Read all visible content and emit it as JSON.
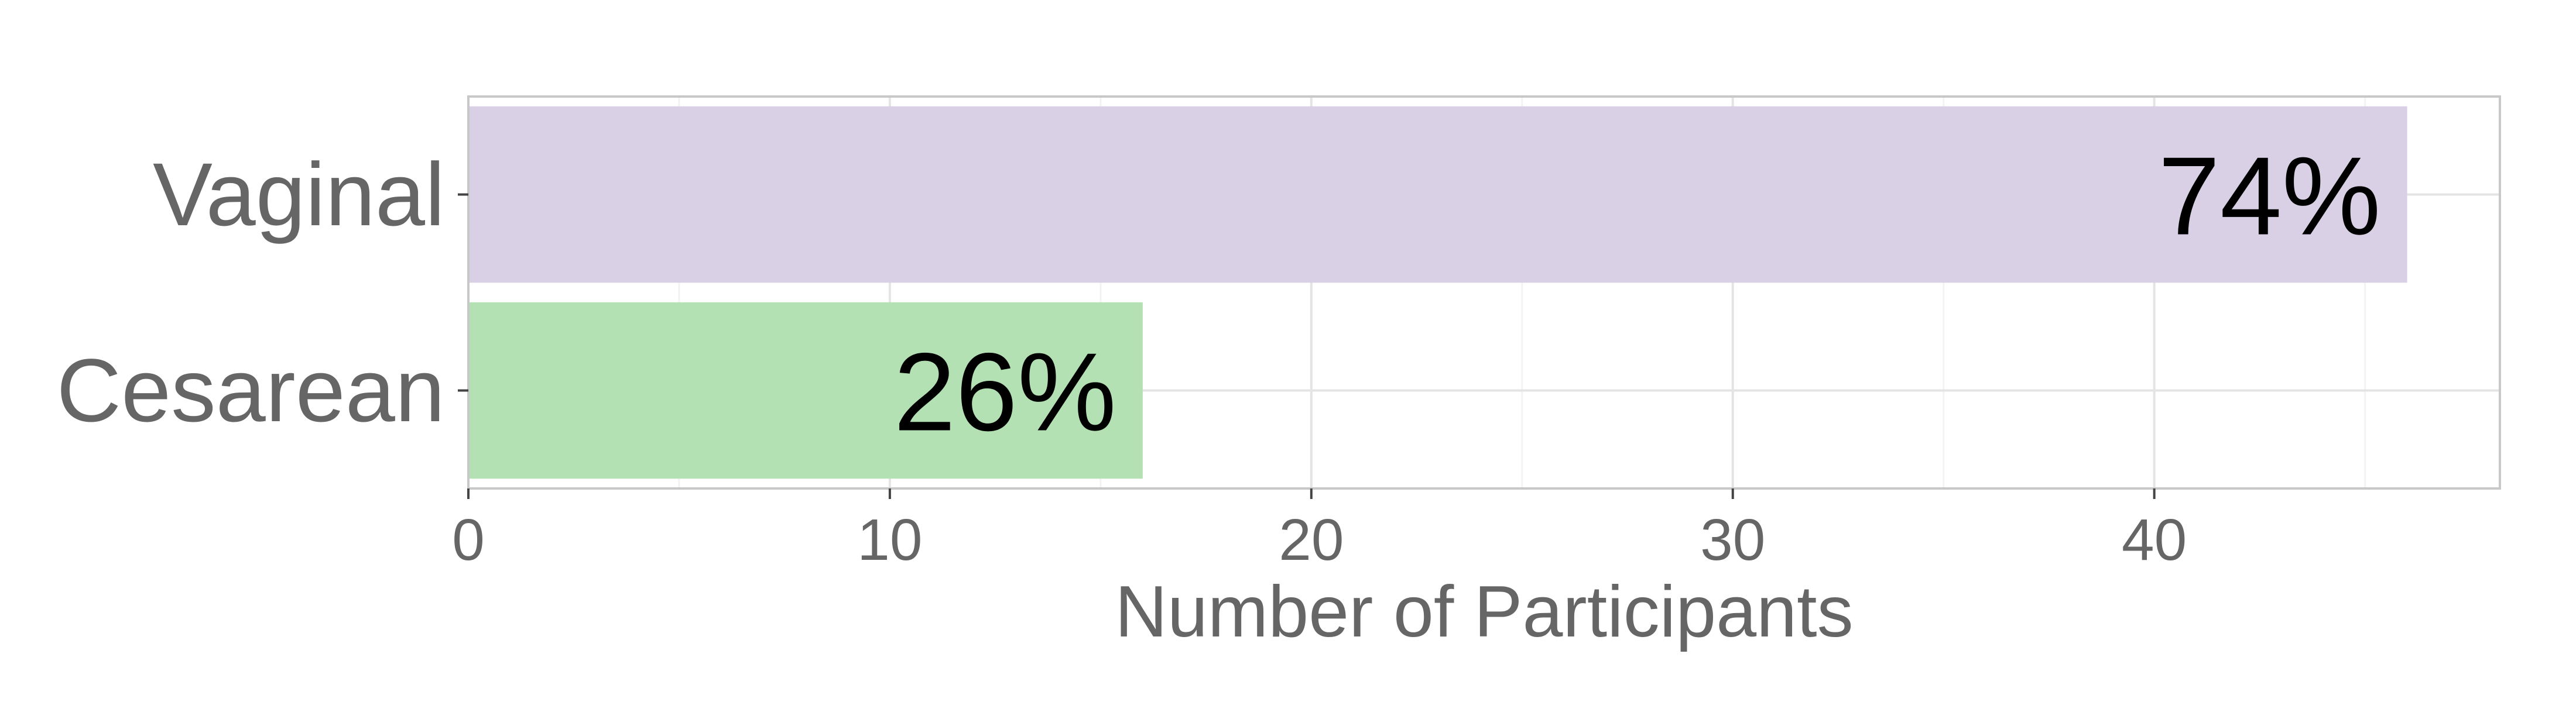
{
  "chart_data": {
    "type": "bar",
    "orientation": "horizontal",
    "categories": [
      "Vaginal",
      "Cesarean"
    ],
    "values": [
      46,
      16
    ],
    "labels": [
      "74%",
      "26%"
    ],
    "colors": [
      "#d8cfe6",
      "#b2e0b2"
    ],
    "title": "",
    "xlabel": "Number of Participants",
    "ylabel": "",
    "xlim": [
      0,
      48.2
    ],
    "xticks": [
      0,
      10,
      20,
      30,
      40
    ],
    "xtick_labels": [
      "0",
      "10",
      "20",
      "30",
      "40"
    ],
    "grid": true,
    "legend": "none"
  },
  "style": {
    "grid_major_color": "#e4e4e4",
    "grid_minor_color": "#f3f3f3",
    "panel_border_color": "#c8c8c8",
    "text_color": "#666666",
    "label_color": "#000000"
  }
}
